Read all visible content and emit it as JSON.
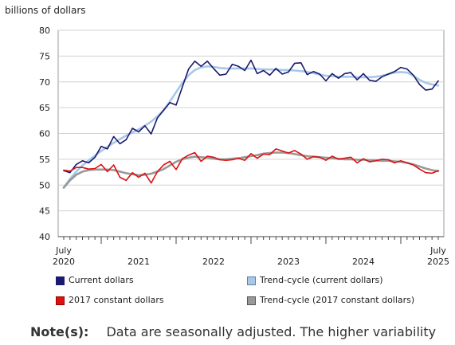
{
  "chart_data": {
    "type": "line",
    "ylabel": "billions of dollars",
    "ylim": [
      40,
      80
    ],
    "yticks": [
      40,
      45,
      50,
      55,
      60,
      65,
      70,
      75,
      80
    ],
    "grid": true,
    "x_start": "2020-07",
    "x_end": "2025-07",
    "x_tick_labels": [
      {
        "month": "2020-07",
        "lines": [
          "July",
          "2020"
        ]
      },
      {
        "month": "2021-07",
        "lines": [
          "",
          "2021"
        ]
      },
      {
        "month": "2022-07",
        "lines": [
          "",
          "2022"
        ]
      },
      {
        "month": "2023-07",
        "lines": [
          "",
          "2023"
        ]
      },
      {
        "month": "2024-07",
        "lines": [
          "",
          "2024"
        ]
      },
      {
        "month": "2025-07",
        "lines": [
          "July",
          "2025"
        ]
      }
    ],
    "series": [
      {
        "name": "Current dollars",
        "color": "#1a1a6e",
        "style": "solid",
        "values": [
          52.8,
          52.4,
          54.0,
          54.7,
          54.3,
          55.4,
          57.5,
          57.0,
          59.4,
          58.0,
          58.8,
          61.0,
          60.3,
          61.5,
          59.9,
          63.0,
          64.5,
          66.0,
          65.5,
          69.0,
          72.5,
          74.0,
          73.0,
          74.0,
          72.6,
          71.3,
          71.5,
          73.4,
          73.0,
          72.2,
          74.2,
          71.6,
          72.2,
          71.3,
          72.6,
          71.5,
          71.9,
          73.6,
          73.7,
          71.4,
          72.0,
          71.5,
          70.2,
          71.6,
          70.7,
          71.6,
          71.8,
          70.4,
          71.6,
          70.3,
          70.1,
          71.0,
          71.5,
          72.0,
          72.8,
          72.5,
          71.3,
          69.5,
          68.4,
          68.6,
          70.2
        ]
      },
      {
        "name": "Trend-cycle (current dollars)",
        "color": "#a8c8e8",
        "style": "solid",
        "values": [
          49.5,
          51.2,
          52.6,
          53.8,
          54.8,
          55.7,
          56.6,
          57.4,
          58.2,
          58.9,
          59.6,
          60.2,
          60.8,
          61.5,
          62.3,
          63.3,
          64.5,
          66.2,
          68.0,
          69.8,
          71.3,
          72.3,
          72.8,
          73.0,
          72.9,
          72.7,
          72.6,
          72.6,
          72.6,
          72.6,
          72.6,
          72.5,
          72.4,
          72.4,
          72.4,
          72.3,
          72.3,
          72.2,
          72.1,
          71.9,
          71.7,
          71.4,
          71.2,
          71.1,
          71.0,
          71.0,
          71.0,
          70.9,
          70.9,
          70.9,
          71.0,
          71.2,
          71.5,
          71.8,
          71.9,
          71.8,
          71.2,
          70.4,
          69.8,
          69.5,
          69.3
        ]
      },
      {
        "name": "2017 constant dollars",
        "color": "#dd1111",
        "style": "solid",
        "values": [
          52.9,
          52.7,
          53.4,
          53.4,
          53.1,
          53.2,
          54.0,
          52.6,
          53.9,
          51.5,
          50.9,
          52.4,
          51.5,
          52.3,
          50.4,
          52.6,
          53.9,
          54.6,
          53.0,
          55.1,
          55.8,
          56.3,
          54.6,
          55.6,
          55.4,
          54.9,
          54.8,
          54.9,
          55.2,
          54.8,
          56.1,
          55.2,
          56.0,
          55.9,
          57.0,
          56.6,
          56.2,
          56.7,
          56.0,
          55.0,
          55.5,
          55.4,
          54.8,
          55.6,
          55.0,
          55.2,
          55.4,
          54.3,
          55.1,
          54.5,
          54.7,
          55.0,
          54.9,
          54.3,
          54.7,
          54.3,
          53.9,
          53.1,
          52.4,
          52.3,
          52.8
        ]
      },
      {
        "name": "Trend-cycle (2017 constant dollars)",
        "color": "#999999",
        "style": "solid",
        "values": [
          49.5,
          50.9,
          52.0,
          52.6,
          52.9,
          53.0,
          53.0,
          53.0,
          52.9,
          52.6,
          52.3,
          52.1,
          51.9,
          52.0,
          52.2,
          52.6,
          53.1,
          53.8,
          54.5,
          55.0,
          55.3,
          55.5,
          55.4,
          55.3,
          55.1,
          55.0,
          55.0,
          55.1,
          55.2,
          55.4,
          55.6,
          55.8,
          56.1,
          56.2,
          56.3,
          56.3,
          56.2,
          56.0,
          55.8,
          55.6,
          55.5,
          55.4,
          55.3,
          55.2,
          55.1,
          55.0,
          55.0,
          54.9,
          54.9,
          54.8,
          54.8,
          54.7,
          54.7,
          54.6,
          54.5,
          54.3,
          54.0,
          53.6,
          53.2,
          52.9,
          52.7
        ]
      }
    ]
  },
  "legend": [
    {
      "label": "Current dollars",
      "color": "#1a1a6e",
      "border": "#1a1a6e"
    },
    {
      "label": "Trend-cycle (current dollars)",
      "color": "#a8c8e8",
      "border": "#5a7fa8"
    },
    {
      "label": "2017 constant dollars",
      "color": "#dd1111",
      "border": "#990000"
    },
    {
      "label": "Trend-cycle (2017 constant dollars)",
      "color": "#999999",
      "border": "#555555"
    }
  ],
  "note": {
    "label": "Note(s):",
    "text": "Data are seasonally adjusted. The higher variability"
  }
}
